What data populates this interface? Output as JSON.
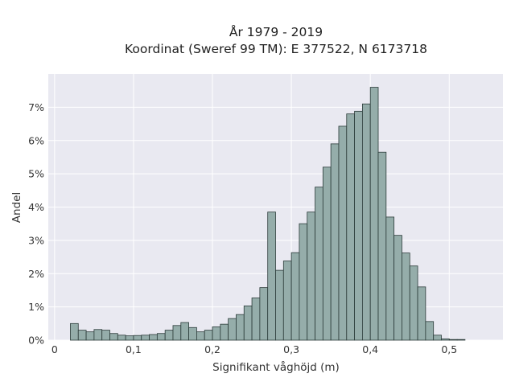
{
  "chart_data": {
    "type": "bar",
    "title": [
      "År 1979 - 2019",
      "Koordinat (Sweref 99 TM): E 377522, N 6173718"
    ],
    "xlabel": "Signifikant våghöjd (m)",
    "ylabel": "Andel",
    "bin_width": 0.01,
    "x_start": 0.02,
    "values": [
      0.5,
      0.3,
      0.25,
      0.32,
      0.3,
      0.2,
      0.15,
      0.13,
      0.14,
      0.15,
      0.17,
      0.2,
      0.3,
      0.44,
      0.53,
      0.38,
      0.25,
      0.3,
      0.4,
      0.48,
      0.65,
      0.77,
      1.03,
      1.27,
      1.58,
      3.85,
      2.1,
      2.38,
      2.63,
      3.5,
      3.85,
      4.6,
      5.2,
      5.9,
      6.43,
      6.8,
      6.88,
      7.1,
      7.6,
      5.65,
      3.7,
      3.15,
      2.62,
      2.23,
      1.6,
      0.56,
      0.15,
      0.04,
      0.02,
      0.02
    ],
    "xlim": [
      -0.008,
      0.568
    ],
    "ylim": [
      0,
      8.0
    ],
    "x_ticks": [
      0,
      0.1,
      0.2,
      0.3,
      0.4,
      0.5
    ],
    "x_tick_labels": [
      "0",
      "0,1",
      "0,2",
      "0,3",
      "0,4",
      "0,5"
    ],
    "y_ticks": [
      0,
      1,
      2,
      3,
      4,
      5,
      6,
      7
    ],
    "y_tick_labels": [
      "0%",
      "1%",
      "2%",
      "3%",
      "4%",
      "5%",
      "6%",
      "7%"
    ],
    "grid": true,
    "colors": {
      "bar_fill": "#95adaa",
      "bar_stroke": "#2b3b39",
      "plot_bg": "#e9e9f1",
      "grid": "#ffffff"
    }
  }
}
